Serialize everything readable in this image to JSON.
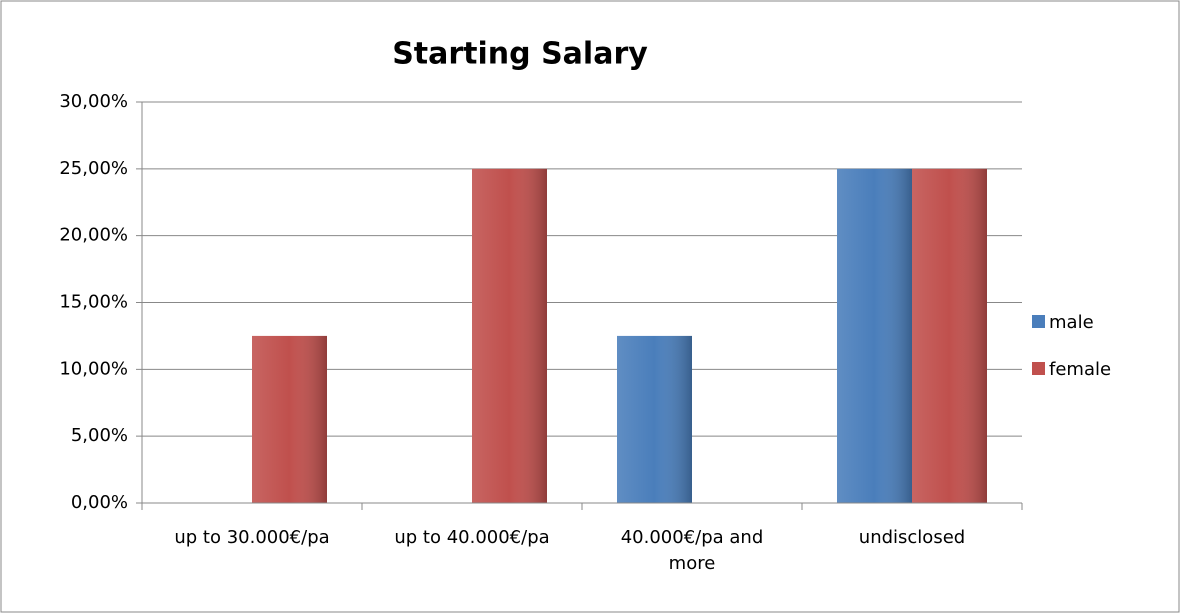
{
  "chart_data": {
    "type": "bar",
    "title": "Starting Salary",
    "categories": [
      "up to 30.000€/pa",
      "up to 40.000€/pa",
      "40.000€/pa and more",
      "undisclosed"
    ],
    "series": [
      {
        "name": "male",
        "color": "#4a7ebb",
        "values": [
          0,
          0,
          12.5,
          25
        ]
      },
      {
        "name": "female",
        "color": "#c0504d",
        "values": [
          12.5,
          25,
          0,
          25
        ]
      }
    ],
    "ylim": [
      0,
      30
    ],
    "yticks": [
      {
        "value": 0,
        "label": "0,00%"
      },
      {
        "value": 5,
        "label": "5,00%"
      },
      {
        "value": 10,
        "label": "10,00%"
      },
      {
        "value": 15,
        "label": "15,00%"
      },
      {
        "value": 20,
        "label": "20,00%"
      },
      {
        "value": 25,
        "label": "25,00%"
      },
      {
        "value": 30,
        "label": "30,00%"
      }
    ],
    "grid": true,
    "legend": "right"
  }
}
